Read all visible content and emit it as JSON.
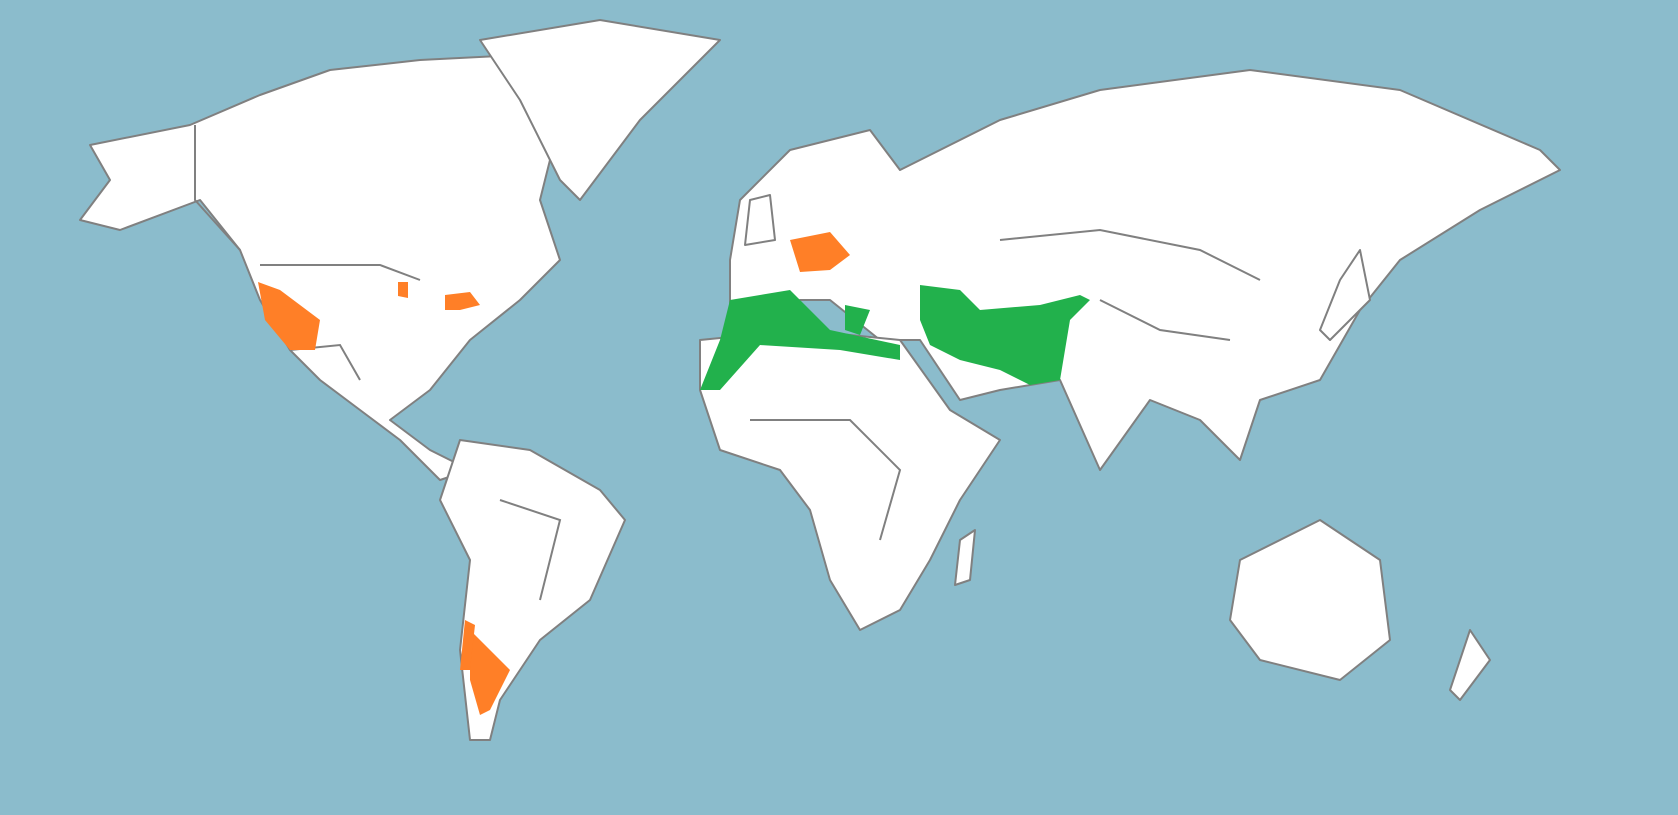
{
  "map": {
    "projection": "world",
    "colors": {
      "ocean": "#8bbccc",
      "land": "#ffffff",
      "border": "#808080",
      "highlight_green": "#22b14c",
      "highlight_orange": "#ff7f27"
    },
    "highlight_categories": [
      "green",
      "orange"
    ]
  }
}
